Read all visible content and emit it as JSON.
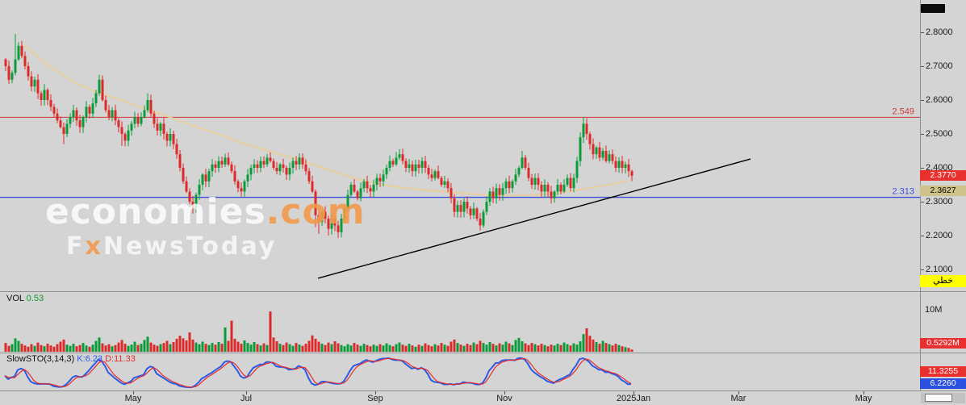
{
  "colors": {
    "up": "#0a9b3a",
    "down": "#dc2a2a",
    "ma": "#e7cf9e",
    "resistance": "#d03838",
    "support": "#3c50dc",
    "trendline": "#000000",
    "k": "#2b5ce6",
    "d": "#e62b2b",
    "vol_value": "#0a9a2a",
    "badge_red": "#e8312f",
    "badge_khaki": "#cfc28a",
    "badge_yellow": "#ffff00",
    "badge_blue": "#2b50e0"
  },
  "watermark": {
    "line1a": "economies",
    "line1b": ".com",
    "line2a": "F",
    "line2b": "x",
    "line2c": "NewsToday"
  },
  "badges": {
    "last_price": "2.3770",
    "secondary_price": "2.3627",
    "chart_type": "خطي"
  },
  "volume_panel": {
    "title": "VOL",
    "value": "0.53",
    "scale": "10M",
    "badge": "0.5292M"
  },
  "sto_panel": {
    "title": "SlowSTO(3,14,3)",
    "k": "K:6.23",
    "d": "D:11.33",
    "badge_d": "11.3255",
    "badge_k": "6.2260"
  },
  "price_axis": {
    "ticks": [
      [
        "2.8000",
        2.8
      ],
      [
        "2.7000",
        2.7
      ],
      [
        "2.6000",
        2.6
      ],
      [
        "2.5000",
        2.5
      ],
      [
        "2.4000",
        2.4
      ],
      [
        "2.3000",
        2.3
      ],
      [
        "2.2000",
        2.2
      ],
      [
        "2.1000",
        2.1
      ]
    ]
  },
  "time_axis": {
    "labels": [
      [
        "May",
        165
      ],
      [
        "Jul",
        305
      ],
      [
        "Sep",
        465
      ],
      [
        "Nov",
        625
      ],
      [
        "2025Jan",
        785
      ],
      [
        "Mar",
        915
      ],
      [
        "May",
        1070
      ]
    ]
  },
  "chart_data": {
    "type": "candlestick",
    "title": "",
    "ylim": [
      2.04,
      2.89
    ],
    "price": {
      "resistance": 2.549,
      "resistance_label": "2.549",
      "support": 2.313,
      "support_label": "2.313",
      "last_close": 2.377,
      "first_open": 2.72,
      "closes": [
        2.7,
        2.66,
        2.68,
        2.72,
        2.76,
        2.73,
        2.7,
        2.67,
        2.64,
        2.66,
        2.62,
        2.6,
        2.63,
        2.6,
        2.58,
        2.56,
        2.54,
        2.52,
        2.5,
        2.53,
        2.55,
        2.57,
        2.54,
        2.52,
        2.55,
        2.58,
        2.56,
        2.59,
        2.62,
        2.66,
        2.6,
        2.57,
        2.55,
        2.57,
        2.54,
        2.52,
        2.5,
        2.48,
        2.51,
        2.53,
        2.55,
        2.53,
        2.55,
        2.57,
        2.6,
        2.56,
        2.53,
        2.51,
        2.53,
        2.5,
        2.48,
        2.5,
        2.47,
        2.44,
        2.4,
        2.36,
        2.33,
        2.3,
        2.28,
        2.32,
        2.35,
        2.38,
        2.36,
        2.39,
        2.41,
        2.4,
        2.42,
        2.41,
        2.43,
        2.41,
        2.39,
        2.36,
        2.34,
        2.33,
        2.36,
        2.38,
        2.4,
        2.41,
        2.4,
        2.42,
        2.41,
        2.43,
        2.42,
        2.4,
        2.39,
        2.41,
        2.4,
        2.38,
        2.4,
        2.42,
        2.41,
        2.43,
        2.41,
        2.39,
        2.36,
        2.33,
        2.26,
        2.24,
        2.27,
        2.25,
        2.22,
        2.25,
        2.23,
        2.21,
        2.25,
        2.28,
        2.32,
        2.35,
        2.33,
        2.31,
        2.34,
        2.36,
        2.34,
        2.33,
        2.35,
        2.37,
        2.36,
        2.38,
        2.4,
        2.42,
        2.41,
        2.43,
        2.44,
        2.42,
        2.4,
        2.41,
        2.39,
        2.41,
        2.4,
        2.42,
        2.4,
        2.38,
        2.37,
        2.39,
        2.37,
        2.35,
        2.36,
        2.34,
        2.31,
        2.27,
        2.29,
        2.27,
        2.3,
        2.28,
        2.26,
        2.28,
        2.25,
        2.23,
        2.27,
        2.3,
        2.33,
        2.31,
        2.34,
        2.32,
        2.34,
        2.36,
        2.34,
        2.36,
        2.38,
        2.4,
        2.43,
        2.4,
        2.37,
        2.35,
        2.37,
        2.35,
        2.33,
        2.35,
        2.33,
        2.31,
        2.33,
        2.35,
        2.33,
        2.35,
        2.37,
        2.34,
        2.37,
        2.42,
        2.49,
        2.53,
        2.5,
        2.47,
        2.44,
        2.46,
        2.43,
        2.45,
        2.42,
        2.44,
        2.42,
        2.4,
        2.42,
        2.4,
        2.41,
        2.39,
        2.377
      ],
      "high_overrides": {
        "3": 2.795,
        "29": 2.67,
        "44": 2.62,
        "122": 2.455,
        "160": 2.45,
        "179": 2.549
      },
      "low_overrides": {
        "18": 2.47,
        "36": 2.465,
        "58": 2.265,
        "96": 2.225,
        "97": 2.205,
        "100": 2.2,
        "103": 2.195,
        "147": 2.215
      },
      "ma_anchors": [
        [
          6,
          2.762
        ],
        [
          13,
          2.705
        ],
        [
          21,
          2.655
        ],
        [
          28,
          2.625
        ],
        [
          36,
          2.6
        ],
        [
          43,
          2.575
        ],
        [
          51,
          2.55
        ],
        [
          58,
          2.525
        ],
        [
          66,
          2.5
        ],
        [
          73,
          2.475
        ],
        [
          81,
          2.452
        ],
        [
          88,
          2.432
        ],
        [
          96,
          2.408
        ],
        [
          103,
          2.385
        ],
        [
          111,
          2.362
        ],
        [
          118,
          2.348
        ],
        [
          126,
          2.338
        ],
        [
          133,
          2.332
        ],
        [
          141,
          2.326
        ],
        [
          148,
          2.32
        ],
        [
          156,
          2.318
        ],
        [
          163,
          2.32
        ],
        [
          171,
          2.325
        ],
        [
          178,
          2.335
        ],
        [
          186,
          2.348
        ],
        [
          193,
          2.362
        ]
      ],
      "trendline": {
        "from_index": 97,
        "from_price": 2.074,
        "to_index": 231,
        "to_price": 2.426
      }
    },
    "volume": {
      "unit": "M",
      "scale_max": 10,
      "last": 0.5292,
      "values": [
        2.1,
        1.4,
        1.8,
        3.2,
        2.6,
        1.9,
        1.5,
        1.2,
        1.8,
        1.4,
        2.2,
        1.6,
        1.3,
        1.9,
        1.5,
        1.2,
        1.8,
        2.4,
        2.9,
        1.7,
        1.4,
        1.9,
        1.3,
        1.6,
        2.1,
        1.5,
        1.2,
        1.7,
        2.6,
        3.4,
        2.0,
        1.5,
        1.8,
        1.3,
        1.6,
        2.2,
        2.8,
        1.9,
        1.4,
        1.7,
        2.4,
        1.6,
        1.9,
        2.8,
        3.6,
        2.2,
        1.7,
        1.4,
        1.8,
        2.1,
        2.6,
        1.8,
        2.3,
        3.1,
        3.8,
        3.2,
        2.7,
        4.6,
        2.9,
        2.2,
        1.8,
        2.4,
        1.9,
        1.6,
        2.1,
        1.7,
        2.3,
        1.9,
        5.8,
        2.6,
        7.4,
        3.1,
        2.4,
        1.9,
        2.7,
        2.1,
        1.7,
        2.3,
        1.8,
        1.5,
        2.0,
        1.6,
        9.6,
        3.4,
        2.5,
        1.9,
        1.6,
        2.2,
        1.8,
        1.4,
        2.1,
        1.7,
        1.4,
        1.9,
        2.6,
        3.9,
        3.1,
        2.4,
        1.9,
        1.6,
        2.2,
        1.8,
        2.5,
        2.0,
        1.6,
        1.3,
        1.8,
        1.5,
        2.1,
        1.7,
        1.4,
        1.9,
        1.6,
        1.3,
        1.7,
        1.4,
        1.8,
        1.5,
        2.0,
        1.6,
        1.3,
        1.8,
        2.2,
        1.7,
        1.4,
        1.9,
        1.5,
        1.2,
        1.7,
        1.4,
        2.0,
        1.6,
        1.3,
        1.8,
        1.5,
        2.1,
        1.7,
        1.4,
        2.4,
        2.9,
        2.1,
        1.7,
        1.4,
        1.9,
        1.6,
        2.2,
        1.8,
        2.6,
        2.1,
        1.7,
        2.3,
        1.9,
        1.5,
        2.0,
        1.7,
        2.4,
        2.0,
        1.6,
        2.8,
        3.3,
        2.5,
        2.0,
        1.6,
        2.1,
        1.8,
        1.5,
        1.9,
        1.6,
        1.3,
        1.7,
        1.5,
        1.9,
        1.6,
        2.2,
        1.8,
        1.5,
        2.0,
        1.7,
        2.5,
        4.2,
        5.6,
        3.8,
        2.9,
        2.3,
        1.9,
        2.6,
        2.1,
        1.8,
        1.5,
        1.9,
        1.6,
        1.3,
        1.1,
        0.9,
        0.53
      ]
    },
    "stochastic": {
      "params": "3,14,3",
      "k_last": 6.23,
      "d_last": 11.33,
      "range": [
        0,
        100
      ]
    }
  }
}
